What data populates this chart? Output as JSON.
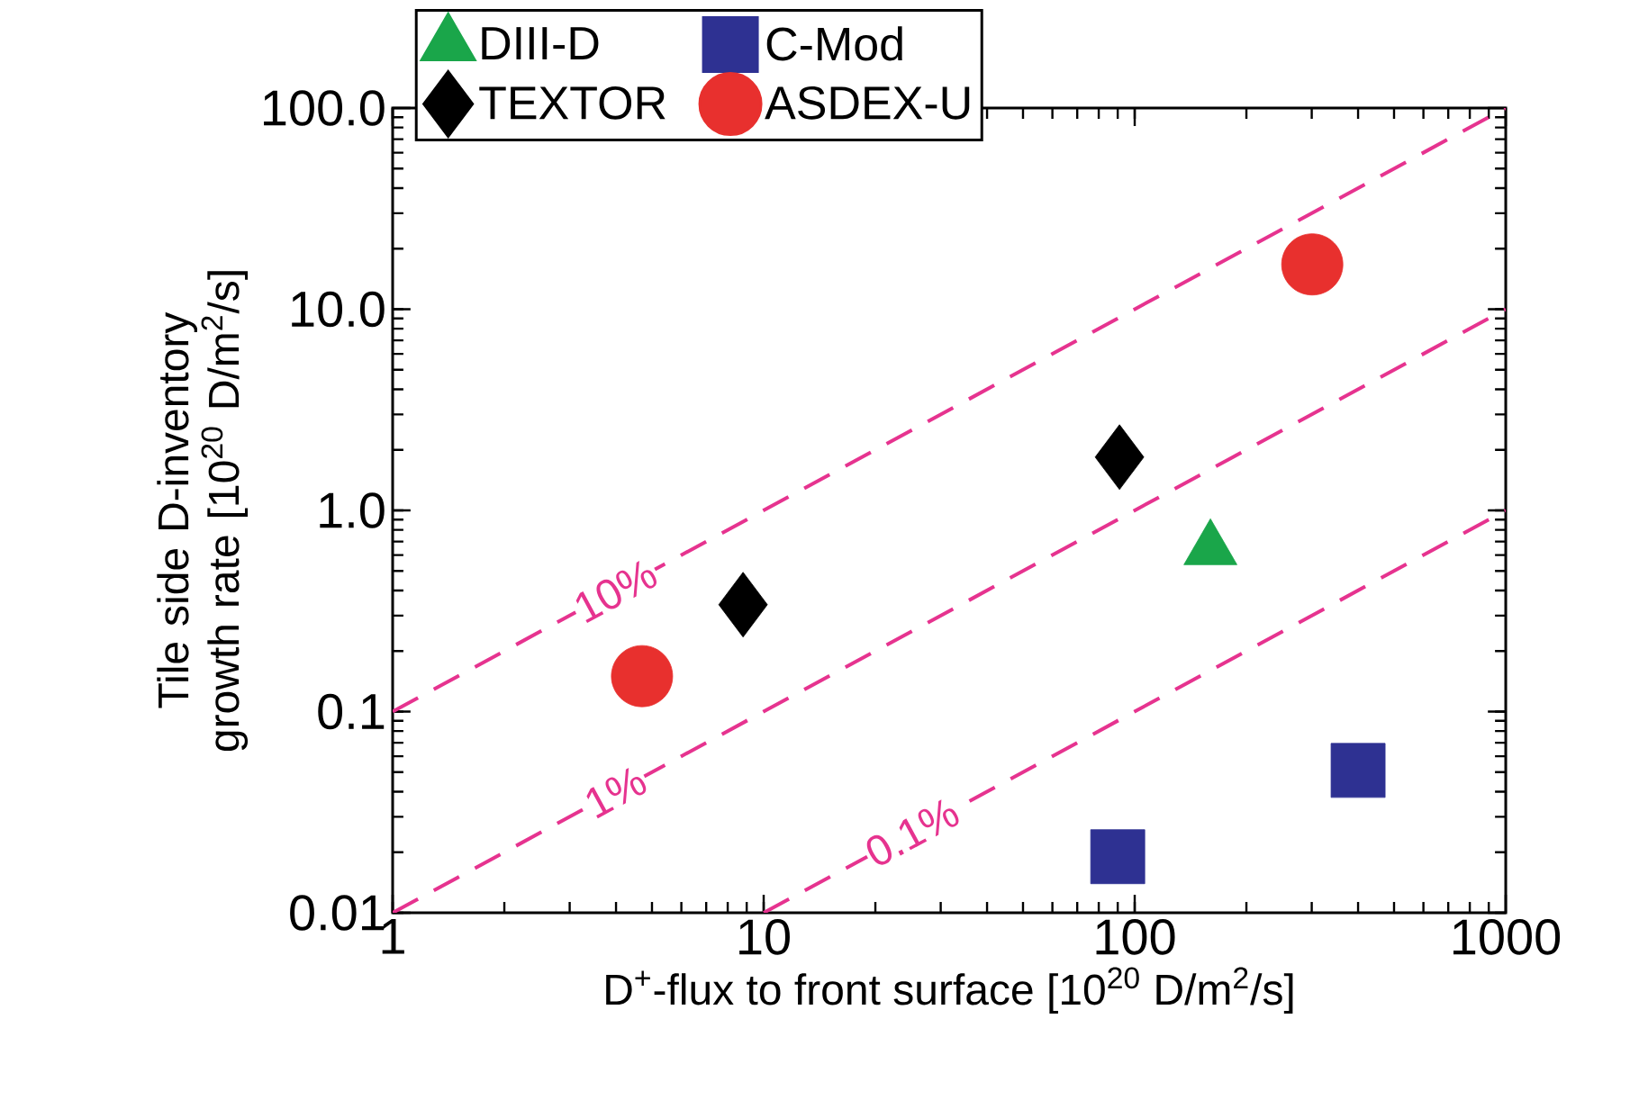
{
  "chart_data": {
    "type": "scatter",
    "xlabel": "D$^{+}$-flux to front surface [10$^{20}$ D/m$^{2}$/s]",
    "ylabel": "Tile side D-inventory growth rate [10$^{20}$ D/m$^{2}$/s]",
    "log": "xy",
    "xlim": [
      1,
      1000
    ],
    "ylim": [
      0.01,
      100
    ],
    "xticks": [
      1,
      10,
      100,
      1000
    ],
    "yticks": [
      0.01,
      0.1,
      {
        "value": 1,
        "label": "1.0"
      },
      {
        "value": 10,
        "label": "10.0"
      },
      {
        "value": 100,
        "label": "100.0"
      }
    ],
    "legend": "top left",
    "grid": false,
    "series": [
      {
        "name": "DIII-D",
        "color": "#1aa64a",
        "marker": "triangle",
        "x": [
          160
        ],
        "values": [
          0.64
        ]
      },
      {
        "name": "C-Mod",
        "color": "#2e3192",
        "marker": "square",
        "x": [
          90,
          400
        ],
        "values": [
          0.019,
          0.051
        ]
      },
      {
        "name": "TEXTOR",
        "color": "#000000",
        "marker": "diamond",
        "x": [
          8.8,
          91
        ],
        "values": [
          0.34,
          1.84
        ]
      },
      {
        "name": "ASDEX-U",
        "color": "#e8302e",
        "marker": "circle",
        "x": [
          4.7,
          301
        ],
        "values": [
          0.15,
          16.7
        ]
      },
      {
        "name": "10%",
        "type": "line",
        "line_style": "dashed",
        "marker": "none",
        "color": "#e6338f",
        "x": [
          1,
          1000
        ],
        "values": [
          0.1,
          100
        ]
      },
      {
        "name": "1%",
        "type": "line",
        "line_style": "dashed",
        "marker": "none",
        "color": "#e6338f",
        "x": [
          1,
          1000
        ],
        "values": [
          0.01,
          10
        ]
      },
      {
        "name": "0.1%",
        "type": "line",
        "line_style": "dashed",
        "marker": "none",
        "color": "#e6338f",
        "x": [
          10,
          1000
        ],
        "values": [
          0.01,
          1
        ]
      }
    ]
  }
}
